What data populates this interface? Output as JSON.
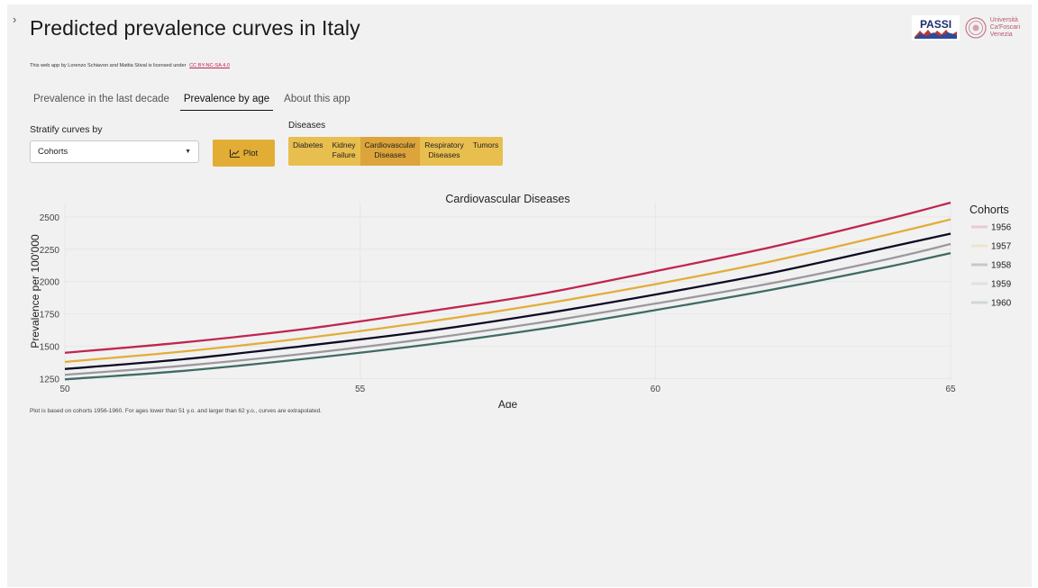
{
  "header": {
    "title": "Predicted prevalence curves in Italy",
    "license_text": "This web app by Lorenzo Schiavon and Mattia Stival is licensed under",
    "license_link": "CC BY-NC-SA 4.0",
    "logo_passi": "PASSI",
    "logo_unive_line1": "Università",
    "logo_unive_line2": "Ca'Foscari",
    "logo_unive_line3": "Venezia"
  },
  "tabs": [
    {
      "label": "Prevalence in the last decade",
      "active": false
    },
    {
      "label": "Prevalence by age",
      "active": true
    },
    {
      "label": "About this app",
      "active": false
    }
  ],
  "controls": {
    "stratify_label": "Stratify curves by",
    "stratify_value": "Cohorts",
    "plot_label": "Plot",
    "diseases_label": "Diseases",
    "diseases": [
      {
        "line1": "Diabetes",
        "line2": "",
        "active": false
      },
      {
        "line1": "Kidney",
        "line2": "Failure",
        "active": false
      },
      {
        "line1": "Cardiovascular",
        "line2": "Diseases",
        "active": true
      },
      {
        "line1": "Respiratory",
        "line2": "Diseases",
        "active": false
      },
      {
        "line1": "Tumors",
        "line2": "",
        "active": false
      }
    ]
  },
  "chart_data": {
    "type": "line",
    "title": "Cardiovascular Diseases",
    "xlabel": "Age",
    "ylabel": "Prevalence per 100'000",
    "xlim": [
      50,
      65
    ],
    "ylim": [
      1240,
      2610
    ],
    "xticks": [
      50,
      55,
      60,
      65
    ],
    "yticks": [
      1250,
      1500,
      1750,
      2000,
      2250,
      2500
    ],
    "legend_title": "Cohorts",
    "legend_position": "right",
    "grid": true,
    "x": [
      50,
      52,
      54,
      56,
      58,
      60,
      62,
      64,
      65
    ],
    "series": [
      {
        "name": "1956",
        "color": "#c0264f",
        "values": [
          1450,
          1530,
          1630,
          1760,
          1900,
          2080,
          2270,
          2490,
          2610
        ]
      },
      {
        "name": "1957",
        "color": "#e2ad3a",
        "values": [
          1380,
          1460,
          1560,
          1680,
          1820,
          1980,
          2160,
          2370,
          2480
        ]
      },
      {
        "name": "1958",
        "color": "#0e0b25",
        "values": [
          1325,
          1400,
          1500,
          1610,
          1745,
          1900,
          2070,
          2270,
          2370
        ]
      },
      {
        "name": "1959",
        "color": "#9c989e",
        "values": [
          1280,
          1350,
          1440,
          1550,
          1680,
          1830,
          1990,
          2180,
          2290
        ]
      },
      {
        "name": "1960",
        "color": "#3f6b64",
        "values": [
          1245,
          1310,
          1400,
          1505,
          1630,
          1780,
          1940,
          2120,
          2220
        ]
      }
    ]
  },
  "footnote": "Plot is based on cohorts 1956-1960. For ages lower than 51 y.o. and larger than 62 y.o., curves are extrapolated."
}
